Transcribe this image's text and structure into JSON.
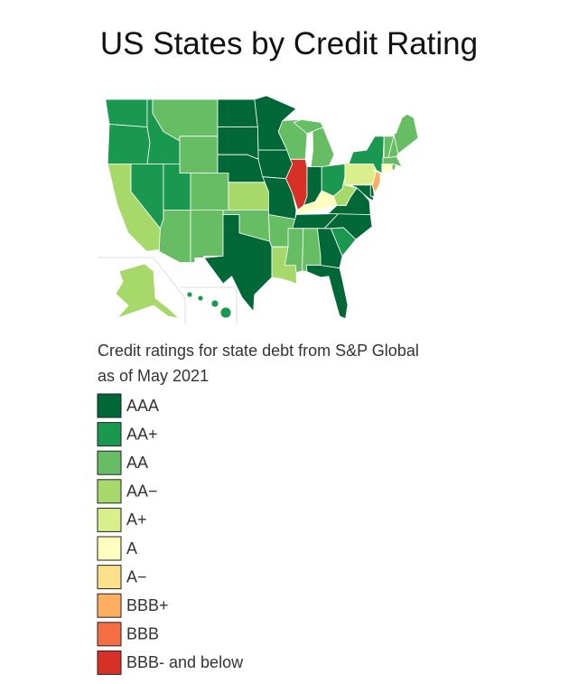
{
  "title": "US States by Credit Rating",
  "caption": [
    "Credit ratings for state debt from S&P Global",
    "as of May 2021"
  ],
  "legend": [
    {
      "label": "AAA",
      "color": "#006837"
    },
    {
      "label": "AA+",
      "color": "#1a9850"
    },
    {
      "label": "AA",
      "color": "#66bd63"
    },
    {
      "label": "AA−",
      "color": "#a6d96a"
    },
    {
      "label": "A+",
      "color": "#d9ef8b"
    },
    {
      "label": "A",
      "color": "#ffffbf"
    },
    {
      "label": "A−",
      "color": "#fee08b"
    },
    {
      "label": "BBB+",
      "color": "#fdae61"
    },
    {
      "label": "BBB",
      "color": "#f46d43"
    },
    {
      "label": "BBB- and below",
      "color": "#d73027"
    }
  ]
}
